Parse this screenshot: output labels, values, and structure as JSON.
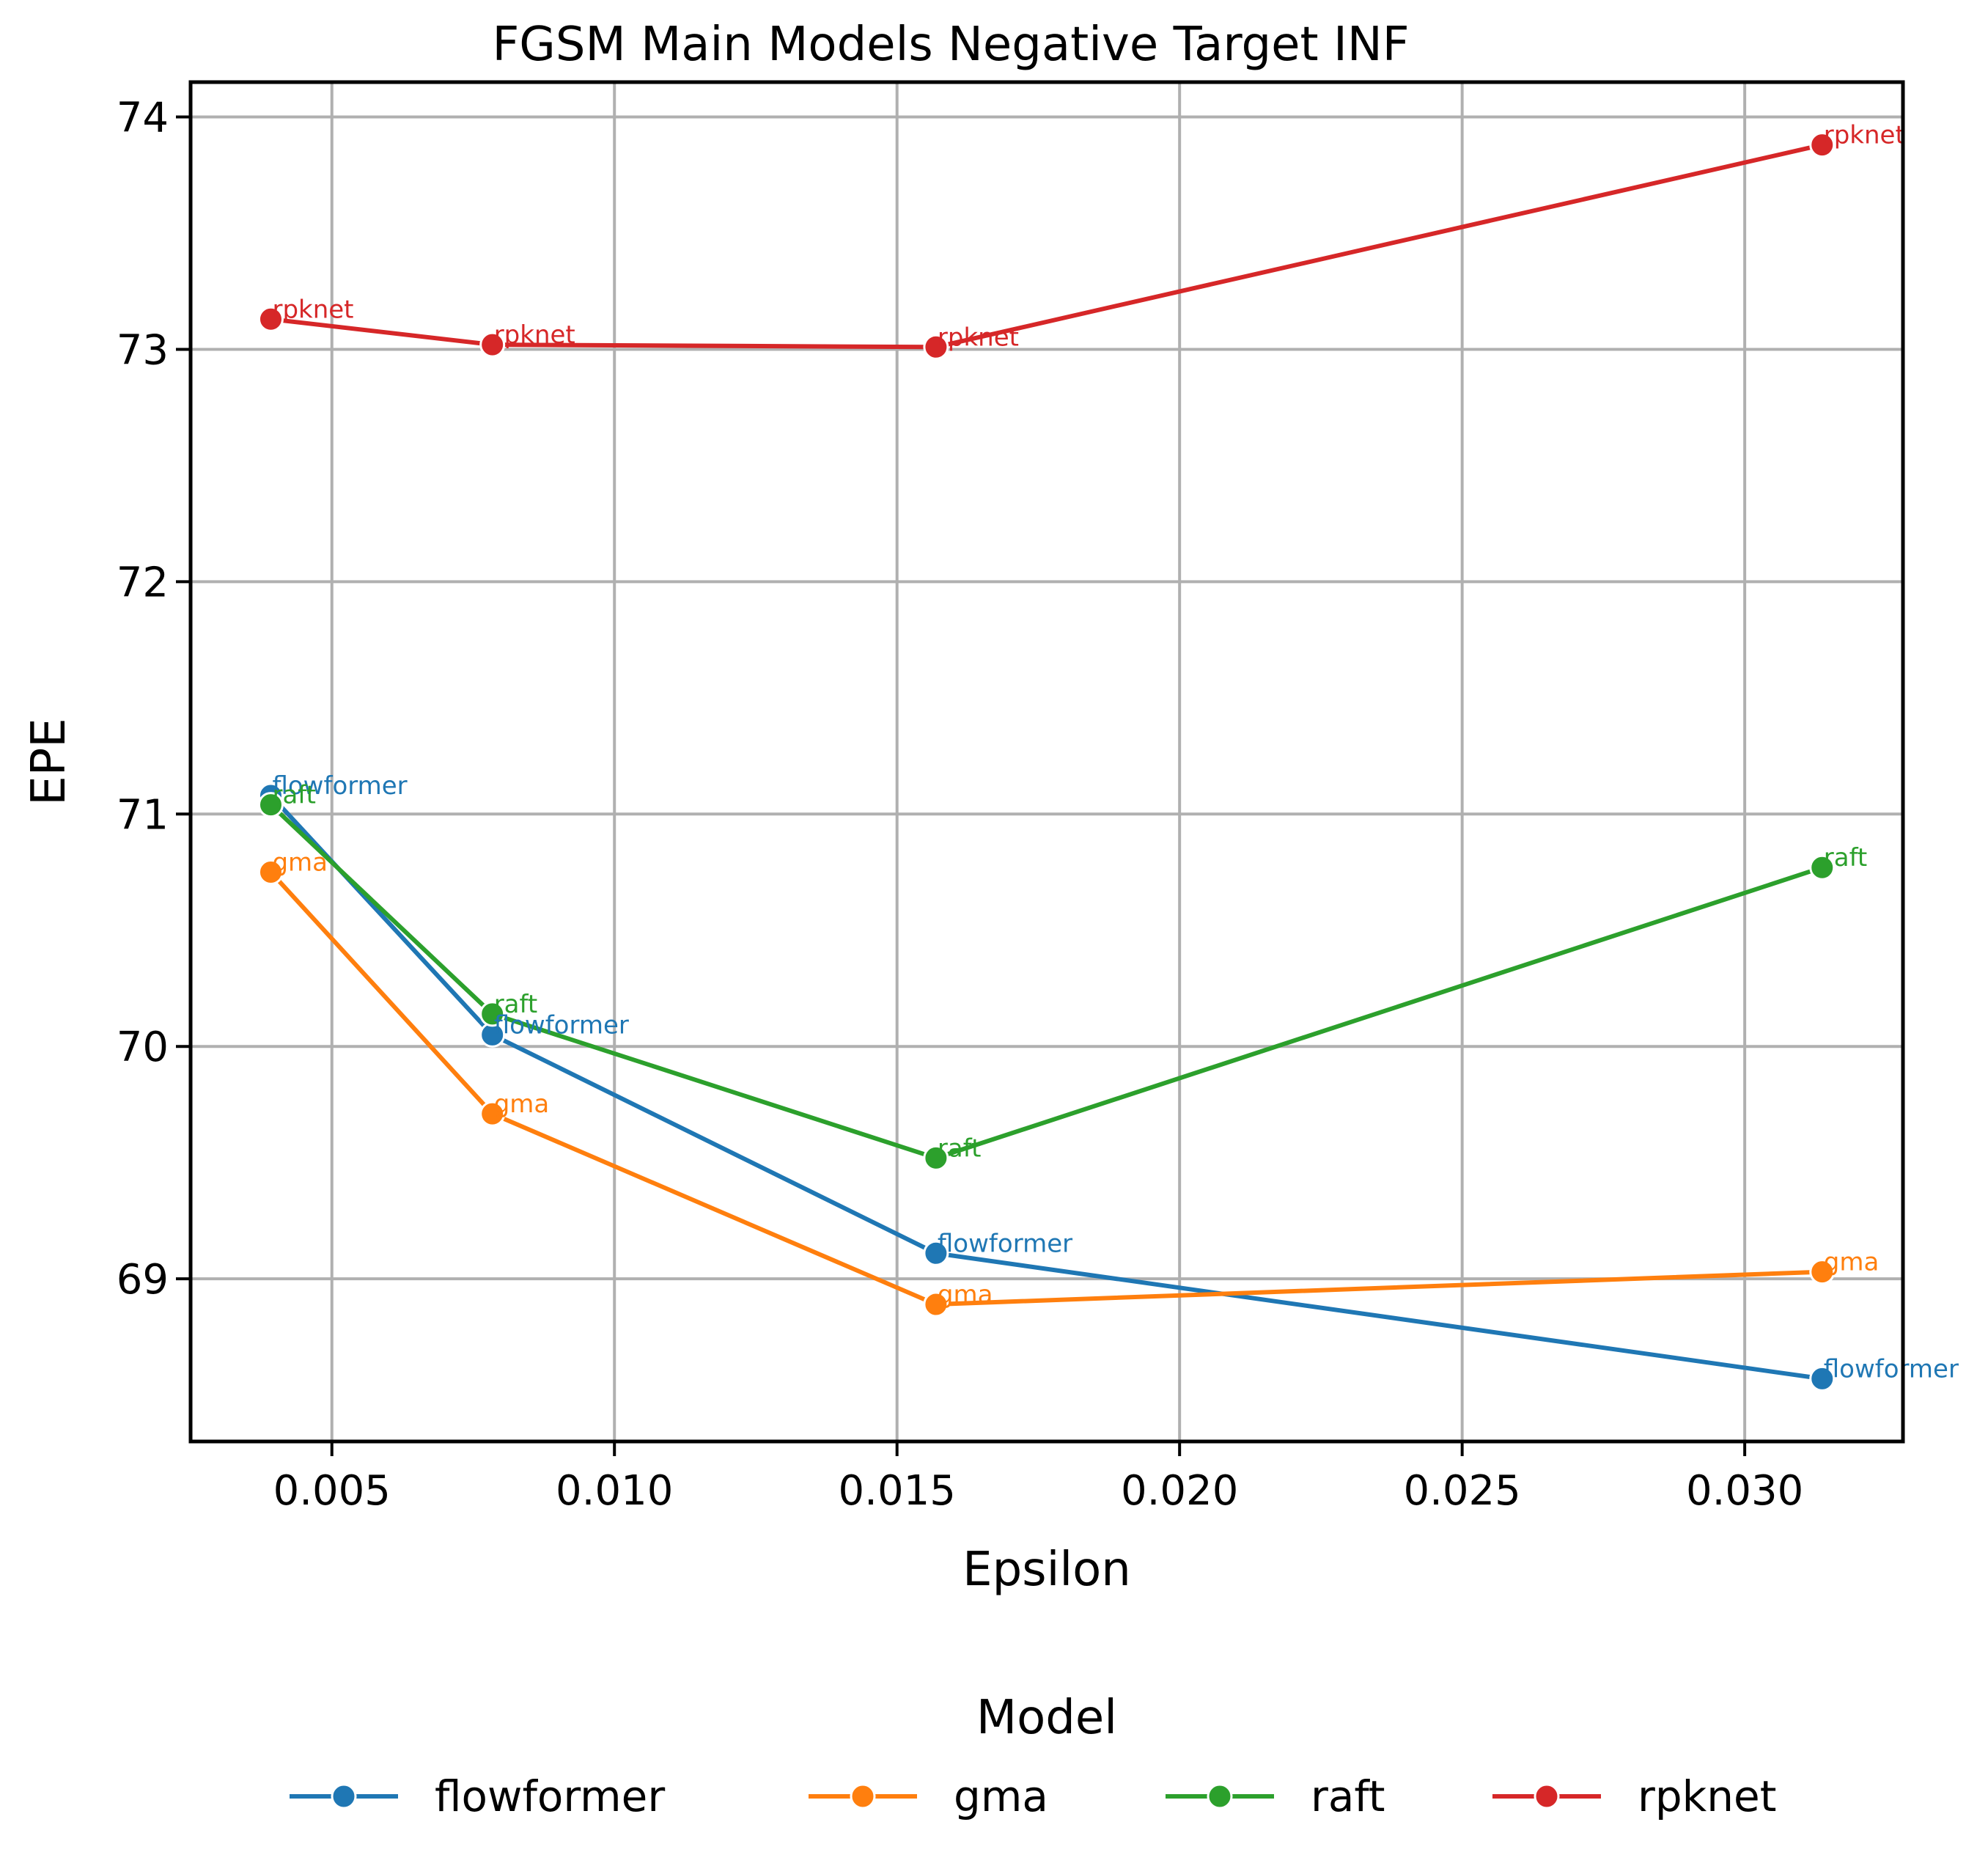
{
  "chart_data": {
    "type": "line",
    "title": "FGSM Main Models Negative Target INF",
    "xlabel": "Epsilon",
    "ylabel": "EPE",
    "xlim": [
      0.0025,
      0.0328
    ],
    "ylim": [
      68.3,
      74.15
    ],
    "xticks": [
      0.005,
      0.01,
      0.015,
      0.02,
      0.025,
      0.03
    ],
    "xtick_labels": [
      "0.005",
      "0.010",
      "0.015",
      "0.020",
      "0.025",
      "0.030"
    ],
    "yticks": [
      69,
      70,
      71,
      72,
      73,
      74
    ],
    "ytick_labels": [
      "69",
      "70",
      "71",
      "72",
      "73",
      "74"
    ],
    "grid": true,
    "legend": {
      "title": "Model",
      "placement": "bottom-center"
    },
    "x": [
      0.00392,
      0.00784,
      0.01569,
      0.03137
    ],
    "series": [
      {
        "name": "flowformer",
        "color": "#1f77b4",
        "values": [
          71.08,
          70.05,
          69.11,
          68.57
        ],
        "point_labels": [
          "flowformer",
          "flowformer",
          "flowformer",
          "flowformer"
        ]
      },
      {
        "name": "gma",
        "color": "#ff7f0e",
        "values": [
          70.75,
          69.71,
          68.89,
          69.03
        ],
        "point_labels": [
          "gma",
          "gma",
          "gma",
          "gma"
        ]
      },
      {
        "name": "raft",
        "color": "#2ca02c",
        "values": [
          71.04,
          70.14,
          69.52,
          70.77
        ],
        "point_labels": [
          "raft",
          "raft",
          "raft",
          "raft"
        ]
      },
      {
        "name": "rpknet",
        "color": "#d62728",
        "values": [
          73.13,
          73.02,
          73.01,
          73.88
        ],
        "point_labels": [
          "rpknet",
          "rpknet",
          "rpknet",
          "rpknet"
        ]
      }
    ]
  }
}
